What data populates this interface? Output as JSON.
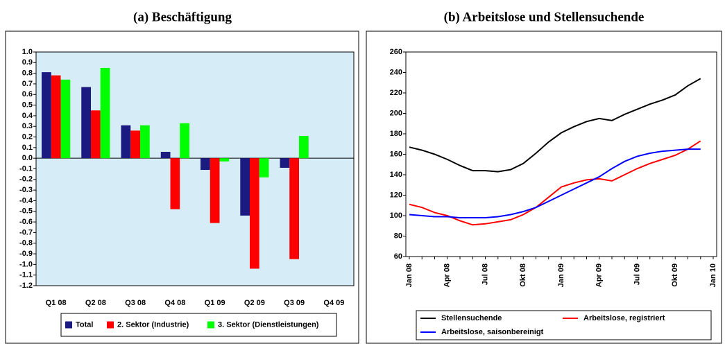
{
  "chart_data": [
    {
      "type": "bar",
      "title": "(a) Beschäftigung",
      "categories": [
        "Q1 08",
        "Q2 08",
        "Q3 08",
        "Q4 08",
        "Q1 09",
        "Q2 09",
        "Q3 09",
        "Q4 09"
      ],
      "series": [
        {
          "name": "Total",
          "color": "#1a1a80",
          "values": [
            0.81,
            0.67,
            0.31,
            0.06,
            -0.11,
            -0.54,
            -0.09,
            null
          ]
        },
        {
          "name": "2. Sektor (Industrie)",
          "color": "#ff0000",
          "values": [
            0.78,
            0.45,
            0.26,
            -0.48,
            -0.61,
            -1.04,
            -0.95,
            null
          ]
        },
        {
          "name": "3. Sektor (Dienstleistungen)",
          "color": "#00ff00",
          "values": [
            0.74,
            0.85,
            0.31,
            0.33,
            -0.03,
            -0.18,
            0.21,
            null
          ]
        }
      ],
      "ylim": [
        -1.2,
        1.0
      ],
      "yticks": [
        {
          "value": 1.0,
          "label": "1.0"
        },
        0.9,
        0.8,
        0.7,
        0.6,
        0.5,
        0.4,
        0.3,
        0.2,
        0.1,
        {
          "value": 0,
          "label": "0.0"
        },
        -0.1,
        -0.2,
        -0.3,
        -0.4,
        -0.5,
        -0.6,
        -0.7,
        -0.8,
        -0.9,
        {
          "value": -1.0,
          "label": "-1.0"
        },
        -1.1,
        -1.2
      ],
      "grid": false
    },
    {
      "type": "line",
      "title": "(b) Arbeitslose und Stellensuchende",
      "categories": [
        "Jan 08",
        null,
        null,
        "Apr 08",
        null,
        null,
        "Jul 08",
        null,
        null,
        "Okt 08",
        null,
        null,
        "Jan 09",
        null,
        null,
        "Apr 09",
        null,
        null,
        "Jul 09",
        null,
        null,
        "Okt 09",
        null,
        null,
        "Jan 10"
      ],
      "series": [
        {
          "name": "Stellensuchende",
          "color": "#000000",
          "values": [
            167,
            164,
            160,
            155,
            149,
            144,
            144,
            143,
            145,
            151,
            161,
            172,
            181,
            187,
            192,
            195,
            193,
            199,
            204,
            209,
            213,
            218,
            227,
            234,
            null
          ]
        },
        {
          "name": "Arbeitslose, registriert",
          "color": "#ff0000",
          "values": [
            111,
            108,
            103,
            100,
            95,
            91,
            92,
            94,
            96,
            101,
            108,
            118,
            128,
            132,
            135,
            136,
            134,
            140,
            146,
            151,
            155,
            159,
            165,
            173,
            null
          ]
        },
        {
          "name": "Arbeitslose, saisonbereinigt",
          "color": "#0000ff",
          "values": [
            101,
            100,
            99,
            99,
            98,
            98,
            98,
            99,
            101,
            104,
            108,
            114,
            120,
            126,
            132,
            138,
            146,
            153,
            158,
            161,
            163,
            164,
            165,
            165,
            null
          ]
        }
      ],
      "ylim": [
        60,
        260
      ],
      "yticks": [
        60,
        80,
        100,
        120,
        140,
        160,
        180,
        200,
        220,
        240,
        260
      ],
      "grid": false
    }
  ]
}
